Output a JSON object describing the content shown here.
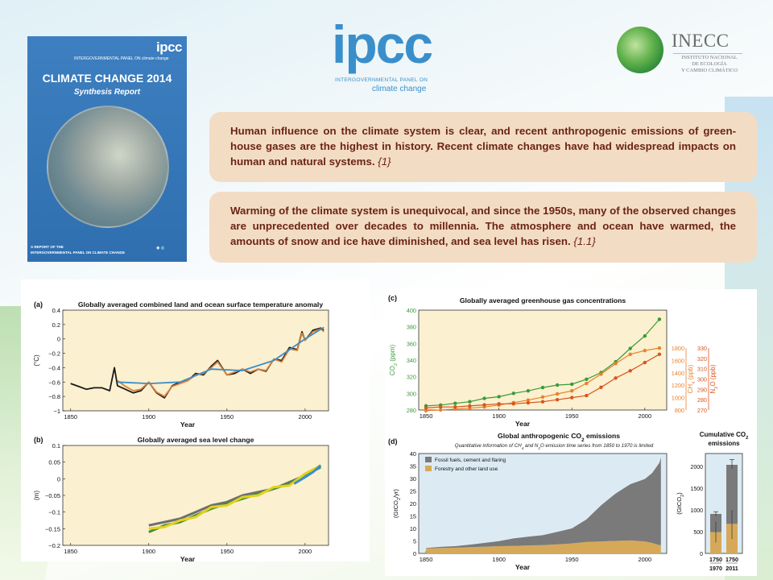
{
  "cover": {
    "logo": "ipcc",
    "org": "INTERGOVERNMENTAL PANEL ON climate change",
    "title": "CLIMATE CHANGE 2014",
    "subtitle": "Synthesis Report",
    "report_line1": "A REPORT OF THE",
    "report_line2": "INTERGOVERNMENTAL PANEL ON CLIMATE CHANGE"
  },
  "ipcc_logo": {
    "word": "ipcc",
    "line1": "INTERGOVERNMENTAL PANEL ON",
    "line2": "climate change"
  },
  "inecc_logo": {
    "name": "INECC",
    "inst_line1": "INSTITUTO NACIONAL",
    "inst_line2": "DE ECOLOGÍA",
    "inst_line3": "Y CAMBIO CLIMÁTICO"
  },
  "statements": {
    "s1_text": "Human influence on the climate system is clear, and recent anthropogenic emissions of green-house gases are the highest in history. Recent climate changes have had widespread impacts on human and natural systems.",
    "s1_ref": "{1}",
    "s2_text": "Warming of the climate system is unequivocal, and since the 1950s, many of the observed changes are unprecedented over decades to millennia. The atmosphere and ocean have warmed, the amounts of snow and ice have diminished, and sea level has risen.",
    "s2_ref": "{1.1}"
  },
  "colors": {
    "box_bg": "#f3dcc4",
    "box_text": "#6b2415",
    "plot_bg": "#fbf0cf",
    "plot_bg_d": "#dcebf3",
    "co2": "#3a9a3a",
    "ch4": "#e8812a",
    "n2o": "#d9541e",
    "fossil": "#7a7a7a",
    "forestry": "#d6a95a",
    "ipcc_blue": "#3a8fcb"
  },
  "chart_data": [
    {
      "id": "a",
      "type": "line",
      "panel_label": "(a)",
      "title": "Globally averaged combined land and ocean surface temperature anomaly",
      "xlabel": "Year",
      "ylabel": "(°C)",
      "xlim": [
        1845,
        2015
      ],
      "ylim": [
        -1,
        0.4
      ],
      "xticks": [
        1850,
        1900,
        1950,
        2000
      ],
      "yticks": [
        -1,
        -0.8,
        -0.6,
        -0.4,
        -0.2,
        0,
        0.2,
        0.4
      ],
      "ytick_labels": [
        "−1",
        "−0.8",
        "−0.6",
        "−0.4",
        "−0.2",
        "0",
        "0.2",
        "0.4"
      ],
      "series": [
        {
          "color": "#1a1a1a",
          "x": [
            1850,
            1855,
            1860,
            1865,
            1870,
            1875,
            1878,
            1880,
            1885,
            1890,
            1895,
            1900,
            1905,
            1910,
            1915,
            1920,
            1925,
            1930,
            1935,
            1940,
            1944,
            1950,
            1955,
            1960,
            1965,
            1970,
            1975,
            1980,
            1985,
            1990,
            1995,
            1998,
            2000,
            2005,
            2010,
            2012
          ],
          "y": [
            -0.62,
            -0.66,
            -0.7,
            -0.68,
            -0.68,
            -0.72,
            -0.4,
            -0.65,
            -0.7,
            -0.75,
            -0.72,
            -0.6,
            -0.75,
            -0.82,
            -0.65,
            -0.6,
            -0.58,
            -0.48,
            -0.5,
            -0.38,
            -0.3,
            -0.5,
            -0.48,
            -0.42,
            -0.48,
            -0.42,
            -0.45,
            -0.28,
            -0.3,
            -0.12,
            -0.15,
            0.1,
            -0.02,
            0.12,
            0.15,
            0.12
          ]
        },
        {
          "color": "#d9823b",
          "x": [
            1880,
            1885,
            1890,
            1895,
            1900,
            1905,
            1910,
            1915,
            1920,
            1925,
            1930,
            1935,
            1940,
            1944,
            1950,
            1955,
            1960,
            1965,
            1970,
            1975,
            1980,
            1985,
            1990,
            1995,
            1998,
            2000,
            2005,
            2010,
            2012
          ],
          "y": [
            -0.58,
            -0.66,
            -0.72,
            -0.7,
            -0.6,
            -0.74,
            -0.8,
            -0.66,
            -0.62,
            -0.58,
            -0.5,
            -0.48,
            -0.4,
            -0.32,
            -0.5,
            -0.46,
            -0.42,
            -0.46,
            -0.42,
            -0.44,
            -0.28,
            -0.32,
            -0.14,
            -0.16,
            0.08,
            -0.02,
            0.1,
            0.14,
            0.1
          ]
        },
        {
          "color": "#3a8fcb",
          "x": [
            1880,
            1900,
            1920,
            1940,
            1960,
            1980,
            2000,
            2012
          ],
          "y": [
            -0.6,
            -0.62,
            -0.6,
            -0.42,
            -0.44,
            -0.3,
            0.0,
            0.16
          ]
        }
      ]
    },
    {
      "id": "b",
      "type": "line",
      "panel_label": "(b)",
      "title": "Globally averaged sea level change",
      "xlabel": "Year",
      "ylabel": "(m)",
      "xlim": [
        1845,
        2015
      ],
      "ylim": [
        -0.2,
        0.1
      ],
      "xticks": [
        1850,
        1900,
        1950,
        2000
      ],
      "yticks": [
        -0.2,
        -0.15,
        -0.1,
        -0.05,
        0,
        0.05,
        0.1
      ],
      "ytick_labels": [
        "−0.2",
        "−0.15",
        "−0.1",
        "−0.05",
        "0",
        "0.05",
        "0.1"
      ],
      "series": [
        {
          "color": "#6f6f6f",
          "x": [
            1900,
            1910,
            1920,
            1930,
            1940,
            1950,
            1960,
            1970,
            1980,
            1990,
            2000,
            2010
          ],
          "y": [
            -0.14,
            -0.13,
            -0.12,
            -0.1,
            -0.08,
            -0.07,
            -0.05,
            -0.04,
            -0.03,
            -0.01,
            0.01,
            0.04
          ]
        },
        {
          "color": "#3f8f3f",
          "x": [
            1900,
            1910,
            1920,
            1930,
            1940,
            1950,
            1960,
            1970,
            1980,
            1990,
            2000,
            2010
          ],
          "y": [
            -0.16,
            -0.14,
            -0.13,
            -0.11,
            -0.09,
            -0.075,
            -0.06,
            -0.045,
            -0.03,
            -0.015,
            0.01,
            0.035
          ]
        },
        {
          "color": "#e3d21b",
          "x": [
            1900,
            1910,
            1920,
            1930,
            1940,
            1950,
            1960,
            1970,
            1980,
            1990,
            2000,
            2010
          ],
          "y": [
            -0.15,
            -0.145,
            -0.125,
            -0.115,
            -0.085,
            -0.08,
            -0.055,
            -0.05,
            -0.025,
            -0.02,
            0.015,
            0.04
          ]
        },
        {
          "color": "#3a8fcb",
          "x": [
            1993,
            2000,
            2005,
            2010
          ],
          "y": [
            -0.015,
            0.005,
            0.02,
            0.04
          ]
        }
      ]
    },
    {
      "id": "c",
      "type": "scatter",
      "panel_label": "(c)",
      "title": "Globally averaged greenhouse gas concentrations",
      "xlabel": "Year",
      "xlim": [
        1845,
        2015
      ],
      "xticks": [
        1850,
        1900,
        1950,
        2000
      ],
      "axes": [
        {
          "label": "CO2 (ppm)",
          "color": "#3a9a3a",
          "side": "left",
          "range": [
            280,
            400
          ],
          "ticks": [
            280,
            300,
            320,
            340,
            360,
            380,
            400
          ]
        },
        {
          "label": "CH4 (ppb)",
          "color": "#e8812a",
          "side": "right",
          "range": [
            800,
            1800
          ],
          "ticks": [
            800,
            1000,
            1200,
            1400,
            1600,
            1800
          ]
        },
        {
          "label": "N2O (ppb)",
          "color": "#d9541e",
          "side": "right",
          "range": [
            270,
            330
          ],
          "ticks": [
            270,
            280,
            290,
            300,
            310,
            320,
            330
          ]
        }
      ],
      "series": [
        {
          "name": "CO2",
          "color": "#3a9a3a",
          "x": [
            1850,
            1860,
            1870,
            1880,
            1890,
            1900,
            1910,
            1920,
            1930,
            1940,
            1950,
            1960,
            1970,
            1980,
            1990,
            2000,
            2010
          ],
          "y": [
            285,
            286,
            288,
            290,
            294,
            296,
            300,
            303,
            307,
            310,
            311,
            317,
            325,
            338,
            354,
            369,
            389
          ]
        },
        {
          "name": "CH4",
          "color": "#e8812a",
          "x": [
            1850,
            1860,
            1870,
            1880,
            1890,
            1900,
            1910,
            1920,
            1930,
            1940,
            1950,
            1960,
            1970,
            1980,
            1990,
            2000,
            2010
          ],
          "y": [
            790,
            800,
            815,
            830,
            850,
            880,
            920,
            960,
            1010,
            1060,
            1110,
            1230,
            1380,
            1550,
            1700,
            1760,
            1800
          ]
        },
        {
          "name": "N2O",
          "color": "#d9541e",
          "x": [
            1850,
            1860,
            1870,
            1880,
            1890,
            1900,
            1910,
            1920,
            1930,
            1940,
            1950,
            1960,
            1970,
            1980,
            1990,
            2000,
            2010
          ],
          "y": [
            272,
            273,
            273,
            274,
            275,
            276,
            276,
            277,
            278,
            280,
            282,
            284,
            292,
            301,
            308,
            316,
            324
          ]
        }
      ]
    },
    {
      "id": "d",
      "type": "area",
      "panel_label": "(d)",
      "title": "Global anthropogenic CO2 emissions",
      "subtitle": "Quantitative information of CH4 and N2O emission time series from 1850 to 1970 is limited",
      "xlabel": "Year",
      "ylabel": "(GtCO2/yr)",
      "xlim": [
        1845,
        2015
      ],
      "ylim": [
        0,
        40
      ],
      "xticks": [
        1850,
        1900,
        1950,
        2000
      ],
      "yticks": [
        0,
        5,
        10,
        15,
        20,
        25,
        30,
        35,
        40
      ],
      "legend": [
        "Fossil fuels, cement and flaring",
        "Forestry and other land use"
      ],
      "legend_position": "top-left",
      "x": [
        1850,
        1860,
        1870,
        1880,
        1890,
        1900,
        1910,
        1920,
        1930,
        1940,
        1950,
        1960,
        1970,
        1980,
        1990,
        2000,
        2005,
        2010,
        2011
      ],
      "series": [
        {
          "name": "Fossil fuels, cement and flaring",
          "color": "#7a7a7a",
          "values": [
            0.2,
            0.4,
            0.6,
            1.0,
            1.5,
            2.0,
            3.0,
            3.5,
            4.0,
            5.0,
            6.0,
            9.0,
            14.5,
            19.0,
            22.5,
            25.0,
            28.0,
            33.0,
            35.0
          ]
        },
        {
          "name": "Forestry and other land use",
          "color": "#d6a95a",
          "values": [
            2.0,
            2.2,
            2.3,
            2.5,
            2.7,
            2.9,
            3.0,
            3.2,
            3.3,
            3.6,
            4.0,
            4.6,
            4.8,
            5.0,
            5.2,
            4.8,
            4.2,
            3.3,
            3.4
          ]
        }
      ]
    },
    {
      "id": "d-cumulative",
      "type": "bar",
      "title": "Cumulative CO2 emissions",
      "ylabel": "(GtCO2)",
      "ylim": [
        0,
        2300
      ],
      "yticks": [
        0,
        500,
        1000,
        1500,
        2000
      ],
      "categories": [
        "1750 1970",
        "1750 2011"
      ],
      "category_labels": [
        [
          "1750",
          "1970"
        ],
        [
          "1750",
          "2011"
        ]
      ],
      "series": [
        {
          "name": "Forestry and other land use",
          "color": "#d6a95a",
          "values": [
            490,
            680
          ],
          "error_low": [
            250,
            330
          ],
          "error_high": [
            730,
            1000
          ]
        },
        {
          "name": "Fossil fuels, cement and flaring",
          "color": "#7a7a7a",
          "values": [
            420,
            1360
          ]
        }
      ],
      "totals": [
        910,
        2040
      ],
      "total_error_low": [
        860,
        1950
      ],
      "total_error_high": [
        960,
        2160
      ]
    }
  ]
}
